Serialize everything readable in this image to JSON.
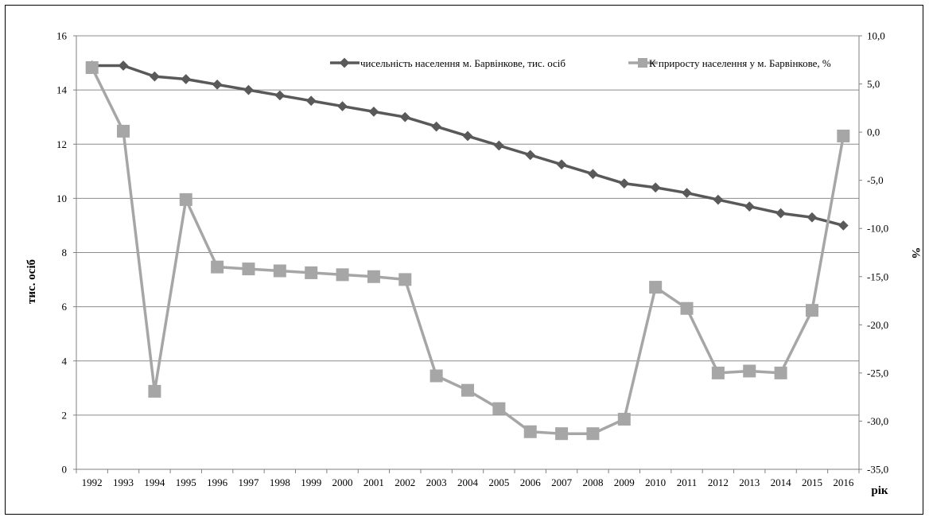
{
  "chart_data": {
    "type": "line",
    "categories": [
      "1992",
      "1993",
      "1994",
      "1995",
      "1996",
      "1997",
      "1998",
      "1999",
      "2000",
      "2001",
      "2002",
      "2003",
      "2004",
      "2005",
      "2006",
      "2007",
      "2008",
      "2009",
      "2010",
      "2011",
      "2012",
      "2013",
      "2014",
      "2015",
      "2016"
    ],
    "series": [
      {
        "name": "чисельність населення м. Барвінкове, тис. осіб",
        "axis": "left",
        "color": "#595959",
        "marker": "diamond",
        "values": [
          14.9,
          14.9,
          14.5,
          14.4,
          14.2,
          14.0,
          13.8,
          13.6,
          13.4,
          13.2,
          13.0,
          12.65,
          12.3,
          11.95,
          11.6,
          11.25,
          10.9,
          10.55,
          10.4,
          10.2,
          9.95,
          9.7,
          9.45,
          9.3,
          9.0
        ]
      },
      {
        "name": "К приросту населення у м. Барвінкове, %",
        "axis": "right",
        "color": "#a6a6a6",
        "marker": "square",
        "values": [
          6.7,
          0.1,
          -26.9,
          -7.0,
          -14.0,
          -14.2,
          -14.4,
          -14.6,
          -14.8,
          -15.0,
          -15.3,
          -25.3,
          -26.8,
          -28.7,
          -31.1,
          -31.3,
          -31.3,
          -29.8,
          -16.1,
          -18.3,
          -25.0,
          -24.8,
          -25.0,
          -18.5,
          -0.4
        ]
      }
    ],
    "y_left": {
      "label": "тис. осіб",
      "ylim": [
        0,
        16
      ],
      "ticks": [
        "0",
        "2",
        "4",
        "6",
        "8",
        "10",
        "12",
        "14",
        "16"
      ]
    },
    "y_right": {
      "label": "%",
      "ylim": [
        -35,
        10
      ],
      "ticks": [
        "-35,0",
        "-30,0",
        "-25,0",
        "-20,0",
        "-15,0",
        "-10,0",
        "-5,0",
        "0,0",
        "5,0",
        "10,0"
      ]
    },
    "xlabel": "рік",
    "grid": true,
    "legend_position": "top-right"
  }
}
